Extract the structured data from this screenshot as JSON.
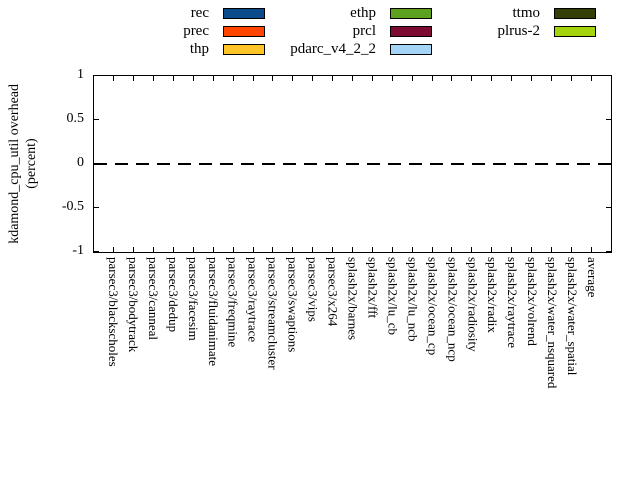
{
  "figure": {
    "background": "#FFFFFF",
    "y_axis": {
      "label_line1": "kdamond_cpu_util overhead",
      "label_line2": "(percent)",
      "tick_labels": [
        "1",
        "0.5",
        "0",
        "-0.5",
        "-1"
      ]
    },
    "zero_line": {
      "value": 0,
      "style": "long-dash",
      "color": "#000000"
    }
  },
  "legend": {
    "columns": [
      {
        "items": [
          {
            "label": "rec",
            "color": "#0B4A8B"
          },
          {
            "label": "prec",
            "color": "#FF4500"
          },
          {
            "label": "thp",
            "color": "#FFC425"
          }
        ]
      },
      {
        "items": [
          {
            "label": "ethp",
            "color": "#5CA11F"
          },
          {
            "label": "prcl",
            "color": "#7D0A31"
          },
          {
            "label": "pdarc_v4_2_2",
            "color": "#A5D5F6"
          }
        ]
      },
      {
        "items": [
          {
            "label": "ttmo",
            "color": "#333F06"
          },
          {
            "label": "plrus-2",
            "color": "#A5D40C"
          }
        ]
      }
    ]
  },
  "chart_data": {
    "type": "bar",
    "title": "",
    "xlabel": "",
    "ylabel": "kdamond_cpu_util overhead (percent)",
    "ylim": [
      -1,
      1
    ],
    "yticks": [
      1,
      0.5,
      0,
      -0.5,
      -1
    ],
    "grid": false,
    "legend_position": "top",
    "zero_reference_line": "dashed horizontal line at y=0",
    "categories": [
      "parsec3/blackscholes",
      "parsec3/bodytrack",
      "parsec3/canneal",
      "parsec3/dedup",
      "parsec3/facesim",
      "parsec3/fluidanimate",
      "parsec3/freqmine",
      "parsec3/raytrace",
      "parsec3/streamcluster",
      "parsec3/swaptions",
      "parsec3/vips",
      "parsec3/x264",
      "splash2x/barnes",
      "splash2x/fft",
      "splash2x/lu_cb",
      "splash2x/lu_ncb",
      "splash2x/ocean_cp",
      "splash2x/ocean_ncp",
      "splash2x/radiosity",
      "splash2x/radix",
      "splash2x/raytrace",
      "splash2x/volrend",
      "splash2x/water_nsquared",
      "splash2x/water_spatial",
      "average"
    ],
    "series": [
      {
        "name": "rec",
        "color": "#0B4A8B",
        "values": [
          0,
          0,
          0,
          0,
          0,
          0,
          0,
          0,
          0,
          0,
          0,
          0,
          0,
          0,
          0,
          0,
          0,
          0,
          0,
          0,
          0,
          0,
          0,
          0,
          0
        ]
      },
      {
        "name": "prec",
        "color": "#FF4500",
        "values": [
          0,
          0,
          0,
          0,
          0,
          0,
          0,
          0,
          0,
          0,
          0,
          0,
          0,
          0,
          0,
          0,
          0,
          0,
          0,
          0,
          0,
          0,
          0,
          0,
          0
        ]
      },
      {
        "name": "thp",
        "color": "#FFC425",
        "values": [
          0,
          0,
          0,
          0,
          0,
          0,
          0,
          0,
          0,
          0,
          0,
          0,
          0,
          0,
          0,
          0,
          0,
          0,
          0,
          0,
          0,
          0,
          0,
          0,
          0
        ]
      },
      {
        "name": "ethp",
        "color": "#5CA11F",
        "values": [
          0,
          0,
          0,
          0,
          0,
          0,
          0,
          0,
          0,
          0,
          0,
          0,
          0,
          0,
          0,
          0,
          0,
          0,
          0,
          0,
          0,
          0,
          0,
          0,
          0
        ]
      },
      {
        "name": "prcl",
        "color": "#7D0A31",
        "values": [
          0,
          0,
          0,
          0,
          0,
          0,
          0,
          0,
          0,
          0,
          0,
          0,
          0,
          0,
          0,
          0,
          0,
          0,
          0,
          0,
          0,
          0,
          0,
          0,
          0
        ]
      },
      {
        "name": "pdarc_v4_2_2",
        "color": "#A5D5F6",
        "values": [
          0,
          0,
          0,
          0,
          0,
          0,
          0,
          0,
          0,
          0,
          0,
          0,
          0,
          0,
          0,
          0,
          0,
          0,
          0,
          0,
          0,
          0,
          0,
          0,
          0
        ]
      },
      {
        "name": "ttmo",
        "color": "#333F06",
        "values": [
          0,
          0,
          0,
          0,
          0,
          0,
          0,
          0,
          0,
          0,
          0,
          0,
          0,
          0,
          0,
          0,
          0,
          0,
          0,
          0,
          0,
          0,
          0,
          0,
          0
        ]
      },
      {
        "name": "plrus-2",
        "color": "#A5D40C",
        "values": [
          0,
          0,
          0,
          0,
          0,
          0,
          0,
          0,
          0,
          0,
          0,
          0,
          0,
          0,
          0,
          0,
          0,
          0,
          0,
          0,
          0,
          0,
          0,
          0,
          0
        ]
      }
    ]
  }
}
